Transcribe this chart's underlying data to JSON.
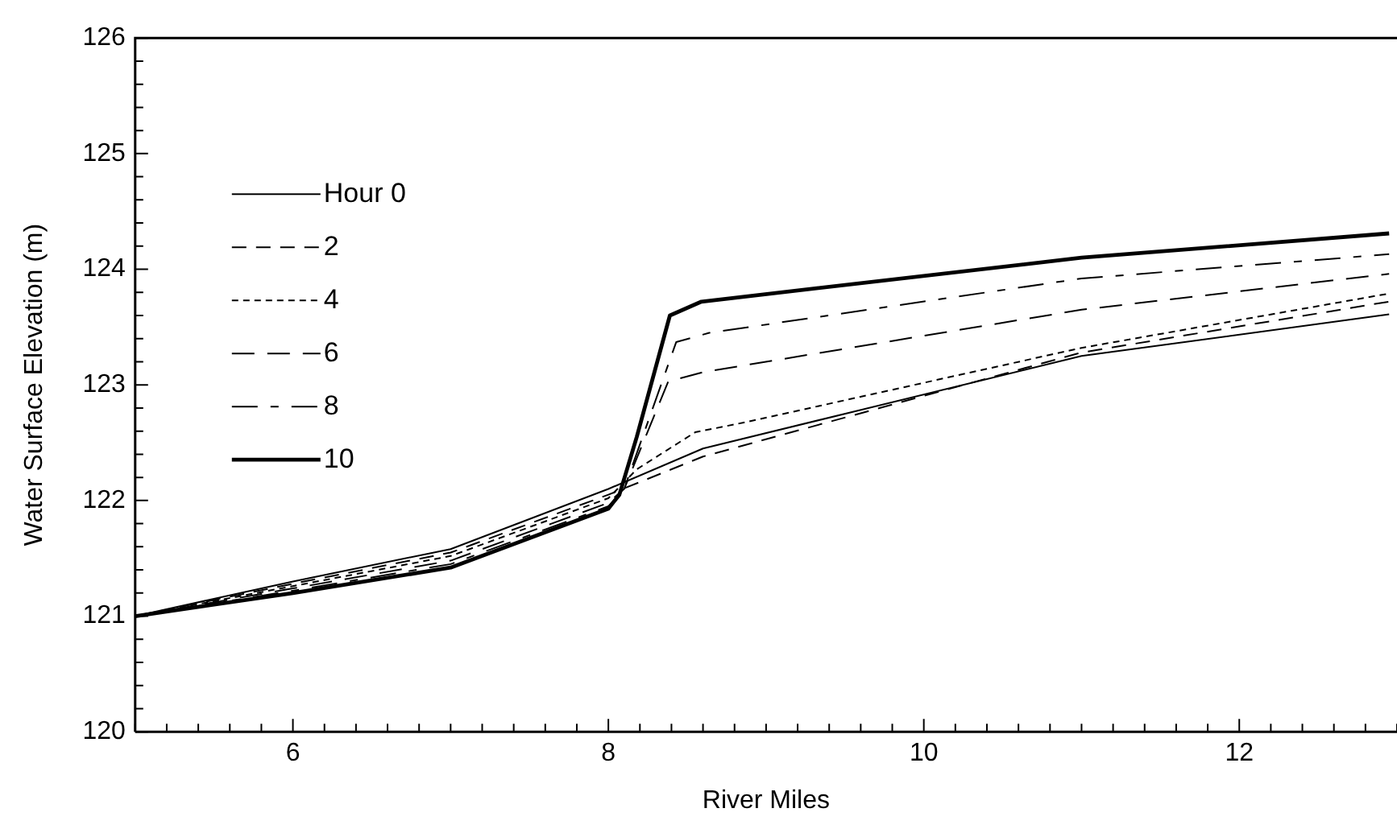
{
  "chart_data": {
    "type": "line",
    "xlabel": "River Miles",
    "ylabel": "Water Surface Elevation (m)",
    "xlim": [
      5,
      13
    ],
    "xticks": [
      6,
      8,
      10,
      12
    ],
    "ylim": [
      120,
      126
    ],
    "yticks": [
      120,
      121,
      122,
      123,
      124,
      125,
      126
    ],
    "grid": false,
    "legend": "top left",
    "marker": "none",
    "series": [
      {
        "name": "Hour 0",
        "color": "#000000",
        "line_style": "solid",
        "x": [
          5,
          6,
          7,
          8,
          8.6,
          11,
          12.95
        ],
        "values": [
          121.0,
          121.3,
          121.58,
          122.1,
          122.45,
          123.25,
          123.61
        ]
      },
      {
        "name": "2",
        "color": "#000000",
        "line_style": "dashed",
        "x": [
          5,
          6,
          7,
          8,
          8.6,
          11,
          12.95
        ],
        "values": [
          121.0,
          121.28,
          121.55,
          122.05,
          122.38,
          123.28,
          123.72
        ]
      },
      {
        "name": "4",
        "color": "#000000",
        "line_style": "dotted",
        "x": [
          5,
          6,
          7,
          8,
          8.18,
          8.55,
          8.88,
          11,
          12.95
        ],
        "values": [
          121.0,
          121.26,
          121.52,
          122.02,
          122.27,
          122.59,
          122.68,
          123.32,
          123.79
        ]
      },
      {
        "name": "6",
        "color": "#000000",
        "line_style": "dashed",
        "x": [
          5,
          6,
          7,
          8,
          8.1,
          8.38,
          8.6,
          11,
          12.95
        ],
        "values": [
          121.0,
          121.24,
          121.48,
          121.98,
          122.1,
          123.03,
          123.11,
          123.65,
          123.96
        ]
      },
      {
        "name": "8",
        "color": "#000000",
        "line_style": "dashed",
        "x": [
          5,
          6,
          7,
          8,
          8.1,
          8.43,
          8.64,
          11,
          12.95
        ],
        "values": [
          121.0,
          121.22,
          121.45,
          121.95,
          122.1,
          123.37,
          123.45,
          123.92,
          124.13
        ]
      },
      {
        "name": "10",
        "color": "#000000",
        "line_style": "solid",
        "x": [
          5,
          6,
          7,
          8,
          8.07,
          8.18,
          8.39,
          8.59,
          11,
          12.95
        ],
        "values": [
          121.0,
          121.2,
          121.42,
          121.93,
          122.05,
          122.55,
          123.6,
          123.72,
          124.1,
          124.31
        ]
      }
    ]
  }
}
